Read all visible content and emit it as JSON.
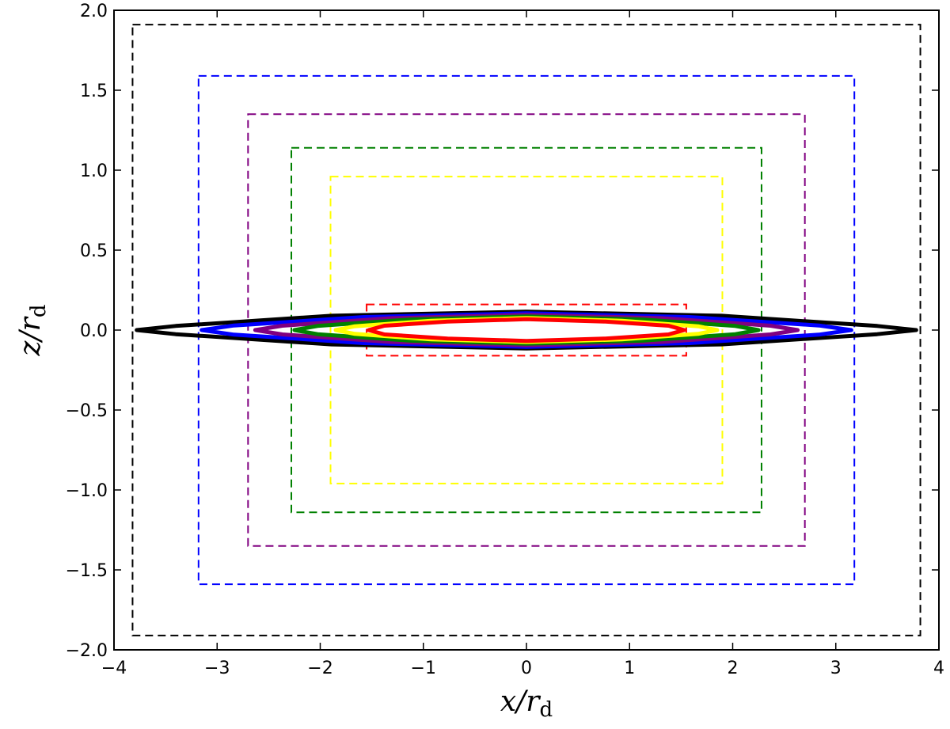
{
  "chart_data": {
    "type": "line",
    "xlabel": {
      "main": "x/r",
      "sub": "d"
    },
    "ylabel": {
      "main": "z/r",
      "sub": "d"
    },
    "xlim": [
      -4,
      4
    ],
    "ylim": [
      -2,
      2
    ],
    "x_ticks": [
      -4,
      -3,
      -2,
      -1,
      0,
      1,
      2,
      3,
      4
    ],
    "x_tick_labels": [
      "−4",
      "−3",
      "−2",
      "−1",
      "0",
      "1",
      "2",
      "3",
      "4"
    ],
    "y_ticks": [
      -2.0,
      -1.5,
      -1.0,
      -0.5,
      0.0,
      0.5,
      1.0,
      1.5,
      2.0
    ],
    "y_tick_labels": [
      "−2.0",
      "−1.5",
      "−1.0",
      "−0.5",
      "0.0",
      "0.5",
      "1.0",
      "1.5",
      "2.0"
    ],
    "grid": false,
    "boxes": [
      {
        "color": "#000000",
        "x": [
          -3.82,
          3.82
        ],
        "z": [
          -1.91,
          1.91
        ]
      },
      {
        "color": "#0000ff",
        "x": [
          -3.18,
          3.18
        ],
        "z": [
          -1.59,
          1.59
        ]
      },
      {
        "color": "#800080",
        "x": [
          -2.7,
          2.7
        ],
        "z": [
          -1.35,
          1.35
        ]
      },
      {
        "color": "#008000",
        "x": [
          -2.28,
          2.28
        ],
        "z": [
          -1.14,
          1.14
        ]
      },
      {
        "color": "#ffff00",
        "x": [
          -1.9,
          1.9
        ],
        "z": [
          -0.96,
          0.96
        ]
      },
      {
        "color": "#ff0000",
        "x": [
          -1.55,
          1.55
        ],
        "z": [
          -0.16,
          0.16
        ]
      }
    ],
    "disks": [
      {
        "color": "#000000",
        "half_length": 3.78,
        "half_thickness": 0.115,
        "end_thickness": 0.01
      },
      {
        "color": "#0000ff",
        "half_length": 3.15,
        "half_thickness": 0.105,
        "end_thickness": 0.015
      },
      {
        "color": "#800080",
        "half_length": 2.63,
        "half_thickness": 0.095,
        "end_thickness": 0.015
      },
      {
        "color": "#008000",
        "half_length": 2.25,
        "half_thickness": 0.085,
        "end_thickness": 0.015
      },
      {
        "color": "#ffff00",
        "half_length": 1.85,
        "half_thickness": 0.075,
        "end_thickness": 0.015
      },
      {
        "color": "#ff0000",
        "half_length": 1.53,
        "half_thickness": 0.068,
        "end_thickness": 0.02
      }
    ]
  }
}
